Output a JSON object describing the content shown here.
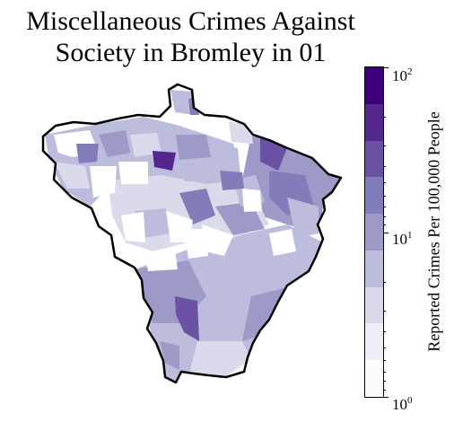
{
  "title_line1": "Miscellaneous Crimes Against",
  "title_line2": "Society in Bromley in 01",
  "colorbar": {
    "label": "Reported Crimes Per 100,000 People",
    "scale": "log",
    "min": 1,
    "max": 100,
    "tick_labels": [
      {
        "base": "10",
        "exp": "2",
        "value": 100
      },
      {
        "base": "10",
        "exp": "1",
        "value": 10
      },
      {
        "base": "10",
        "exp": "0",
        "value": 1
      }
    ],
    "colormap": "Purples",
    "colors": [
      "#fcfbfd",
      "#efedf5",
      "#dadaeb",
      "#bcbddc",
      "#9e9ac8",
      "#807dba",
      "#6a51a3",
      "#54278f",
      "#3f007d"
    ]
  },
  "map": {
    "region": "Bromley",
    "border_color": "#000000"
  }
}
